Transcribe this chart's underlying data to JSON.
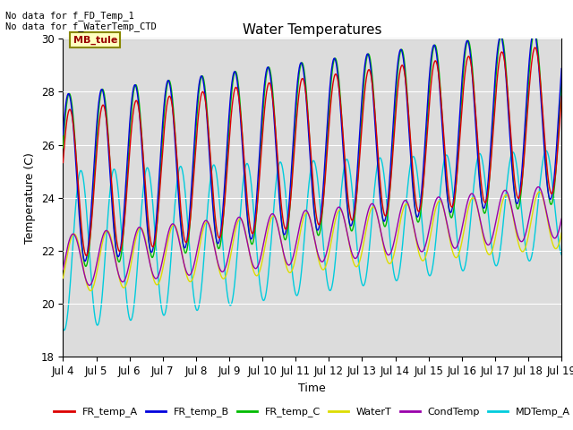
{
  "title": "Water Temperatures",
  "xlabel": "Time",
  "ylabel": "Temperature (C)",
  "ylim": [
    18,
    30
  ],
  "xlim": [
    0,
    15
  ],
  "xtick_labels": [
    "Jul 4",
    "Jul 5",
    "Jul 6",
    "Jul 7",
    "Jul 8",
    "Jul 9",
    "Jul 10",
    "Jul 11",
    "Jul 12",
    "Jul 13",
    "Jul 14",
    "Jul 15",
    "Jul 16",
    "Jul 17",
    "Jul 18",
    "Jul 19"
  ],
  "annotation_text": "No data for f_FD_Temp_1\nNo data for f_WaterTemp_CTD",
  "mb_tule_label": "MB_tule",
  "series_colors": {
    "FR_temp_A": "#dd0000",
    "FR_temp_B": "#0000dd",
    "FR_temp_C": "#00bb00",
    "WaterT": "#dddd00",
    "CondTemp": "#9900aa",
    "MDTemp_A": "#00ccdd"
  },
  "legend_labels": [
    "FR_temp_A",
    "FR_temp_B",
    "FR_temp_C",
    "WaterT",
    "CondTemp",
    "MDTemp_A"
  ],
  "legend_colors": [
    "#dd0000",
    "#0000dd",
    "#00bb00",
    "#dddd00",
    "#9900aa",
    "#00ccdd"
  ],
  "background_color": "#dcdcdc",
  "title_fontsize": 11,
  "axis_fontsize": 9,
  "tick_fontsize": 8.5
}
